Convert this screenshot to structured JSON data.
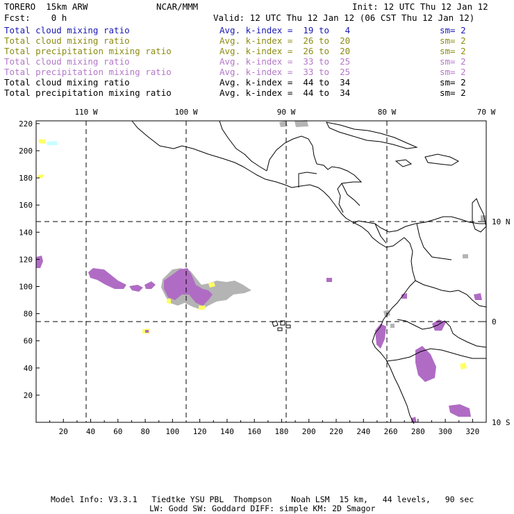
{
  "header": {
    "model": "TORERO  15km ARW",
    "org": "NCAR/MMM",
    "init": "Init: 12 UTC Thu 12 Jan 12",
    "fcst": "Fcst:    0 h",
    "valid": "Valid: 12 UTC Thu 12 Jan 12 (06 CST Thu 12 Jan 12)"
  },
  "legend": [
    {
      "field": "Total cloud mixing ratio",
      "kindex": "Avg. k-index =  19 to   4",
      "sm": "sm= 2",
      "color": "#1a1ab4"
    },
    {
      "field": "Total cloud mixing ratio",
      "kindex": "Avg. k-index =  26 to  20",
      "sm": "sm= 2",
      "color": "#8c8c14"
    },
    {
      "field": "Total precipitation mixing ratio",
      "kindex": "Avg. k-index =  26 to  20",
      "sm": "sm= 2",
      "color": "#8c8c14"
    },
    {
      "field": "Total cloud mixing ratio",
      "kindex": "Avg. k-index =  33 to  25",
      "sm": "sm= 2",
      "color": "#b478c8"
    },
    {
      "field": "Total precipitation mixing ratio",
      "kindex": "Avg. k-index =  33 to  25",
      "sm": "sm= 2",
      "color": "#b478c8"
    },
    {
      "field": "Total cloud mixing ratio",
      "kindex": "Avg. k-index =  44 to  34",
      "sm": "sm= 2",
      "color": "#000000"
    },
    {
      "field": "Total precipitation mixing ratio",
      "kindex": "Avg. k-index =  44 to  34",
      "sm": "sm= 2",
      "color": "#000000"
    }
  ],
  "map": {
    "x_ticks": [
      "20",
      "40",
      "60",
      "80",
      "100",
      "120",
      "140",
      "160",
      "180",
      "200",
      "220",
      "240",
      "260",
      "280",
      "300",
      "320"
    ],
    "y_ticks": [
      "20",
      "40",
      "60",
      "80",
      "100",
      "120",
      "140",
      "160",
      "180",
      "200",
      "220"
    ],
    "lon_labels": [
      "110 W",
      "100 W",
      "90 W",
      "80 W",
      "70 W"
    ],
    "lat_labels": [
      "10 N",
      "0",
      "10 S"
    ],
    "colors": {
      "purple": "#b06cc4",
      "gray": "#b4b4b4",
      "yellow": "#ffff64",
      "cyan": "#c8ffff"
    }
  },
  "footer": {
    "line1": "Model Info: V3.3.1   Tiedtke YSU PBL  Thompson    Noah LSM  15 km,   44 levels,   90 sec",
    "line2": "LW: Godd SW: Goddard DIFF: simple KM: 2D Smagor"
  }
}
